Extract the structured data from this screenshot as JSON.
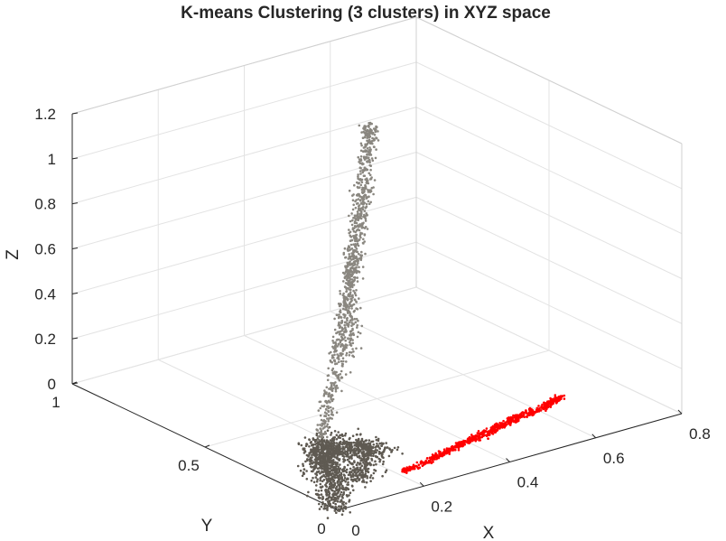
{
  "chart_data": {
    "type": "scatter",
    "title": "K-means Clustering (3 clusters) in XYZ space",
    "xlabel": "X",
    "ylabel": "Y",
    "zlabel": "Z",
    "xlim": [
      0,
      0.8
    ],
    "ylim": [
      0,
      1
    ],
    "zlim": [
      0,
      1.2
    ],
    "xticks": [
      "0",
      "0.2",
      "0.4",
      "0.6",
      "0.8"
    ],
    "yticks": [
      "0",
      "0.5",
      "1"
    ],
    "zticks": [
      "0",
      "0.2",
      "0.4",
      "0.6",
      "0.8",
      "1",
      "1.2"
    ],
    "grid": true,
    "projection": "3d",
    "series": [
      {
        "color": "#5f5a52",
        "shape": "dense cone near origin",
        "points": [
          [
            0.0,
            0.0,
            0.0
          ],
          [
            0.02,
            0.05,
            0.02
          ],
          [
            0.05,
            0.1,
            0.03
          ],
          [
            0.08,
            0.15,
            0.05
          ],
          [
            0.1,
            0.2,
            0.08
          ],
          [
            0.12,
            0.22,
            0.1
          ],
          [
            0.06,
            0.18,
            0.06
          ],
          [
            0.15,
            0.2,
            0.09
          ],
          [
            0.18,
            0.18,
            0.08
          ],
          [
            0.14,
            0.12,
            0.06
          ],
          [
            0.1,
            0.08,
            0.04
          ],
          [
            0.04,
            0.14,
            0.07
          ],
          [
            0.12,
            0.25,
            0.12
          ],
          [
            0.08,
            0.22,
            0.1
          ],
          [
            0.2,
            0.15,
            0.07
          ],
          [
            0.16,
            0.24,
            0.11
          ]
        ]
      },
      {
        "color": "#8a8780",
        "shape": "elongated plume rising along Z",
        "points": [
          [
            0.1,
            0.22,
            0.15
          ],
          [
            0.13,
            0.25,
            0.25
          ],
          [
            0.17,
            0.28,
            0.35
          ],
          [
            0.2,
            0.32,
            0.45
          ],
          [
            0.23,
            0.35,
            0.55
          ],
          [
            0.26,
            0.38,
            0.65
          ],
          [
            0.28,
            0.4,
            0.72
          ],
          [
            0.3,
            0.42,
            0.8
          ],
          [
            0.32,
            0.44,
            0.88
          ],
          [
            0.34,
            0.46,
            0.95
          ],
          [
            0.36,
            0.48,
            1.05
          ],
          [
            0.38,
            0.5,
            1.15
          ],
          [
            0.39,
            0.51,
            1.22
          ],
          [
            0.22,
            0.3,
            0.4
          ],
          [
            0.25,
            0.36,
            0.58
          ],
          [
            0.29,
            0.41,
            0.76
          ]
        ]
      },
      {
        "color": "#ff0000",
        "shape": "thin band along X",
        "points": [
          [
            0.2,
            0.08,
            0.02
          ],
          [
            0.25,
            0.08,
            0.03
          ],
          [
            0.3,
            0.09,
            0.04
          ],
          [
            0.35,
            0.1,
            0.05
          ],
          [
            0.4,
            0.1,
            0.06
          ],
          [
            0.45,
            0.11,
            0.07
          ],
          [
            0.5,
            0.12,
            0.08
          ],
          [
            0.55,
            0.12,
            0.09
          ],
          [
            0.58,
            0.13,
            0.1
          ],
          [
            0.6,
            0.13,
            0.11
          ],
          [
            0.28,
            0.08,
            0.05
          ],
          [
            0.42,
            0.1,
            0.08
          ],
          [
            0.52,
            0.12,
            0.1
          ]
        ]
      }
    ]
  }
}
